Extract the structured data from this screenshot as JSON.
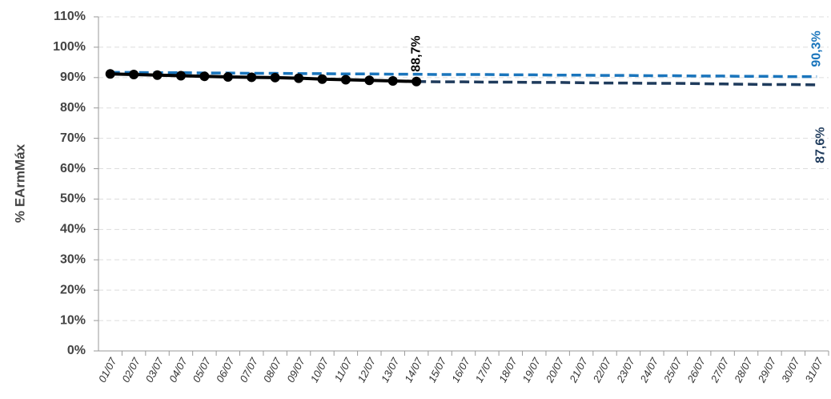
{
  "chart_data": {
    "type": "line",
    "y_label": "% EArmMáx",
    "categories": [
      "01/07",
      "02/07",
      "03/07",
      "04/07",
      "05/07",
      "06/07",
      "07/07",
      "08/07",
      "09/07",
      "10/07",
      "11/07",
      "12/07",
      "13/07",
      "14/07",
      "15/07",
      "16/07",
      "17/07",
      "18/07",
      "19/07",
      "20/07",
      "21/07",
      "22/07",
      "23/07",
      "24/07",
      "25/07",
      "26/07",
      "27/07",
      "28/07",
      "29/07",
      "30/07",
      "31/07"
    ],
    "ylim": [
      0,
      110
    ],
    "yticks": [
      {
        "value": 0,
        "label": "0%"
      },
      {
        "value": 10,
        "label": "10%"
      },
      {
        "value": 20,
        "label": "20%"
      },
      {
        "value": 30,
        "label": "30%"
      },
      {
        "value": 40,
        "label": "40%"
      },
      {
        "value": 50,
        "label": "50%"
      },
      {
        "value": 60,
        "label": "60%"
      },
      {
        "value": 70,
        "label": "70%"
      },
      {
        "value": 80,
        "label": "80%"
      },
      {
        "value": 90,
        "label": "90%"
      },
      {
        "value": 100,
        "label": "100%"
      },
      {
        "value": 110,
        "label": "110%"
      }
    ],
    "grid": true,
    "series": [
      {
        "color": "#1a75bc",
        "dashed": true,
        "markers": false,
        "values": [
          91.7,
          91.7,
          91.6,
          91.6,
          91.5,
          91.5,
          91.4,
          91.4,
          91.3,
          91.3,
          91.2,
          91.2,
          91.1,
          91.1,
          91.0,
          91.0,
          91.0,
          90.9,
          90.9,
          90.8,
          90.8,
          90.7,
          90.7,
          90.6,
          90.6,
          90.5,
          90.5,
          90.4,
          90.4,
          90.3,
          90.3
        ],
        "value_labels": [
          null,
          null,
          null,
          null,
          null,
          null,
          null,
          null,
          null,
          null,
          null,
          null,
          null,
          null,
          null,
          null,
          null,
          null,
          null,
          null,
          null,
          null,
          null,
          null,
          null,
          null,
          null,
          null,
          null,
          null,
          "90,3%"
        ]
      },
      {
        "color": "#1f3b5c",
        "dashed": true,
        "markers": false,
        "values": [
          null,
          null,
          null,
          null,
          null,
          null,
          null,
          null,
          null,
          null,
          null,
          null,
          null,
          88.7,
          88.6,
          88.6,
          88.5,
          88.5,
          88.4,
          88.4,
          88.3,
          88.2,
          88.2,
          88.1,
          88.1,
          88.0,
          87.9,
          87.8,
          87.7,
          87.7,
          87.6
        ],
        "value_labels": [
          null,
          null,
          null,
          null,
          null,
          null,
          null,
          null,
          null,
          null,
          null,
          null,
          null,
          null,
          null,
          null,
          null,
          null,
          null,
          null,
          null,
          null,
          null,
          null,
          null,
          null,
          null,
          null,
          null,
          null,
          "87,6%"
        ]
      },
      {
        "color": "#000000",
        "dashed": false,
        "markers": true,
        "values": [
          91.2,
          91.0,
          90.8,
          90.6,
          90.4,
          90.2,
          90.1,
          90.0,
          89.8,
          89.5,
          89.3,
          89.1,
          88.9,
          88.7,
          null,
          null,
          null,
          null,
          null,
          null,
          null,
          null,
          null,
          null,
          null,
          null,
          null,
          null,
          null,
          null,
          null
        ],
        "value_labels": [
          null,
          null,
          null,
          null,
          null,
          null,
          null,
          null,
          null,
          null,
          null,
          null,
          null,
          "88,7%",
          null,
          null,
          null,
          null,
          null,
          null,
          null,
          null,
          null,
          null,
          null,
          null,
          null,
          null,
          null,
          null,
          null
        ]
      }
    ]
  }
}
